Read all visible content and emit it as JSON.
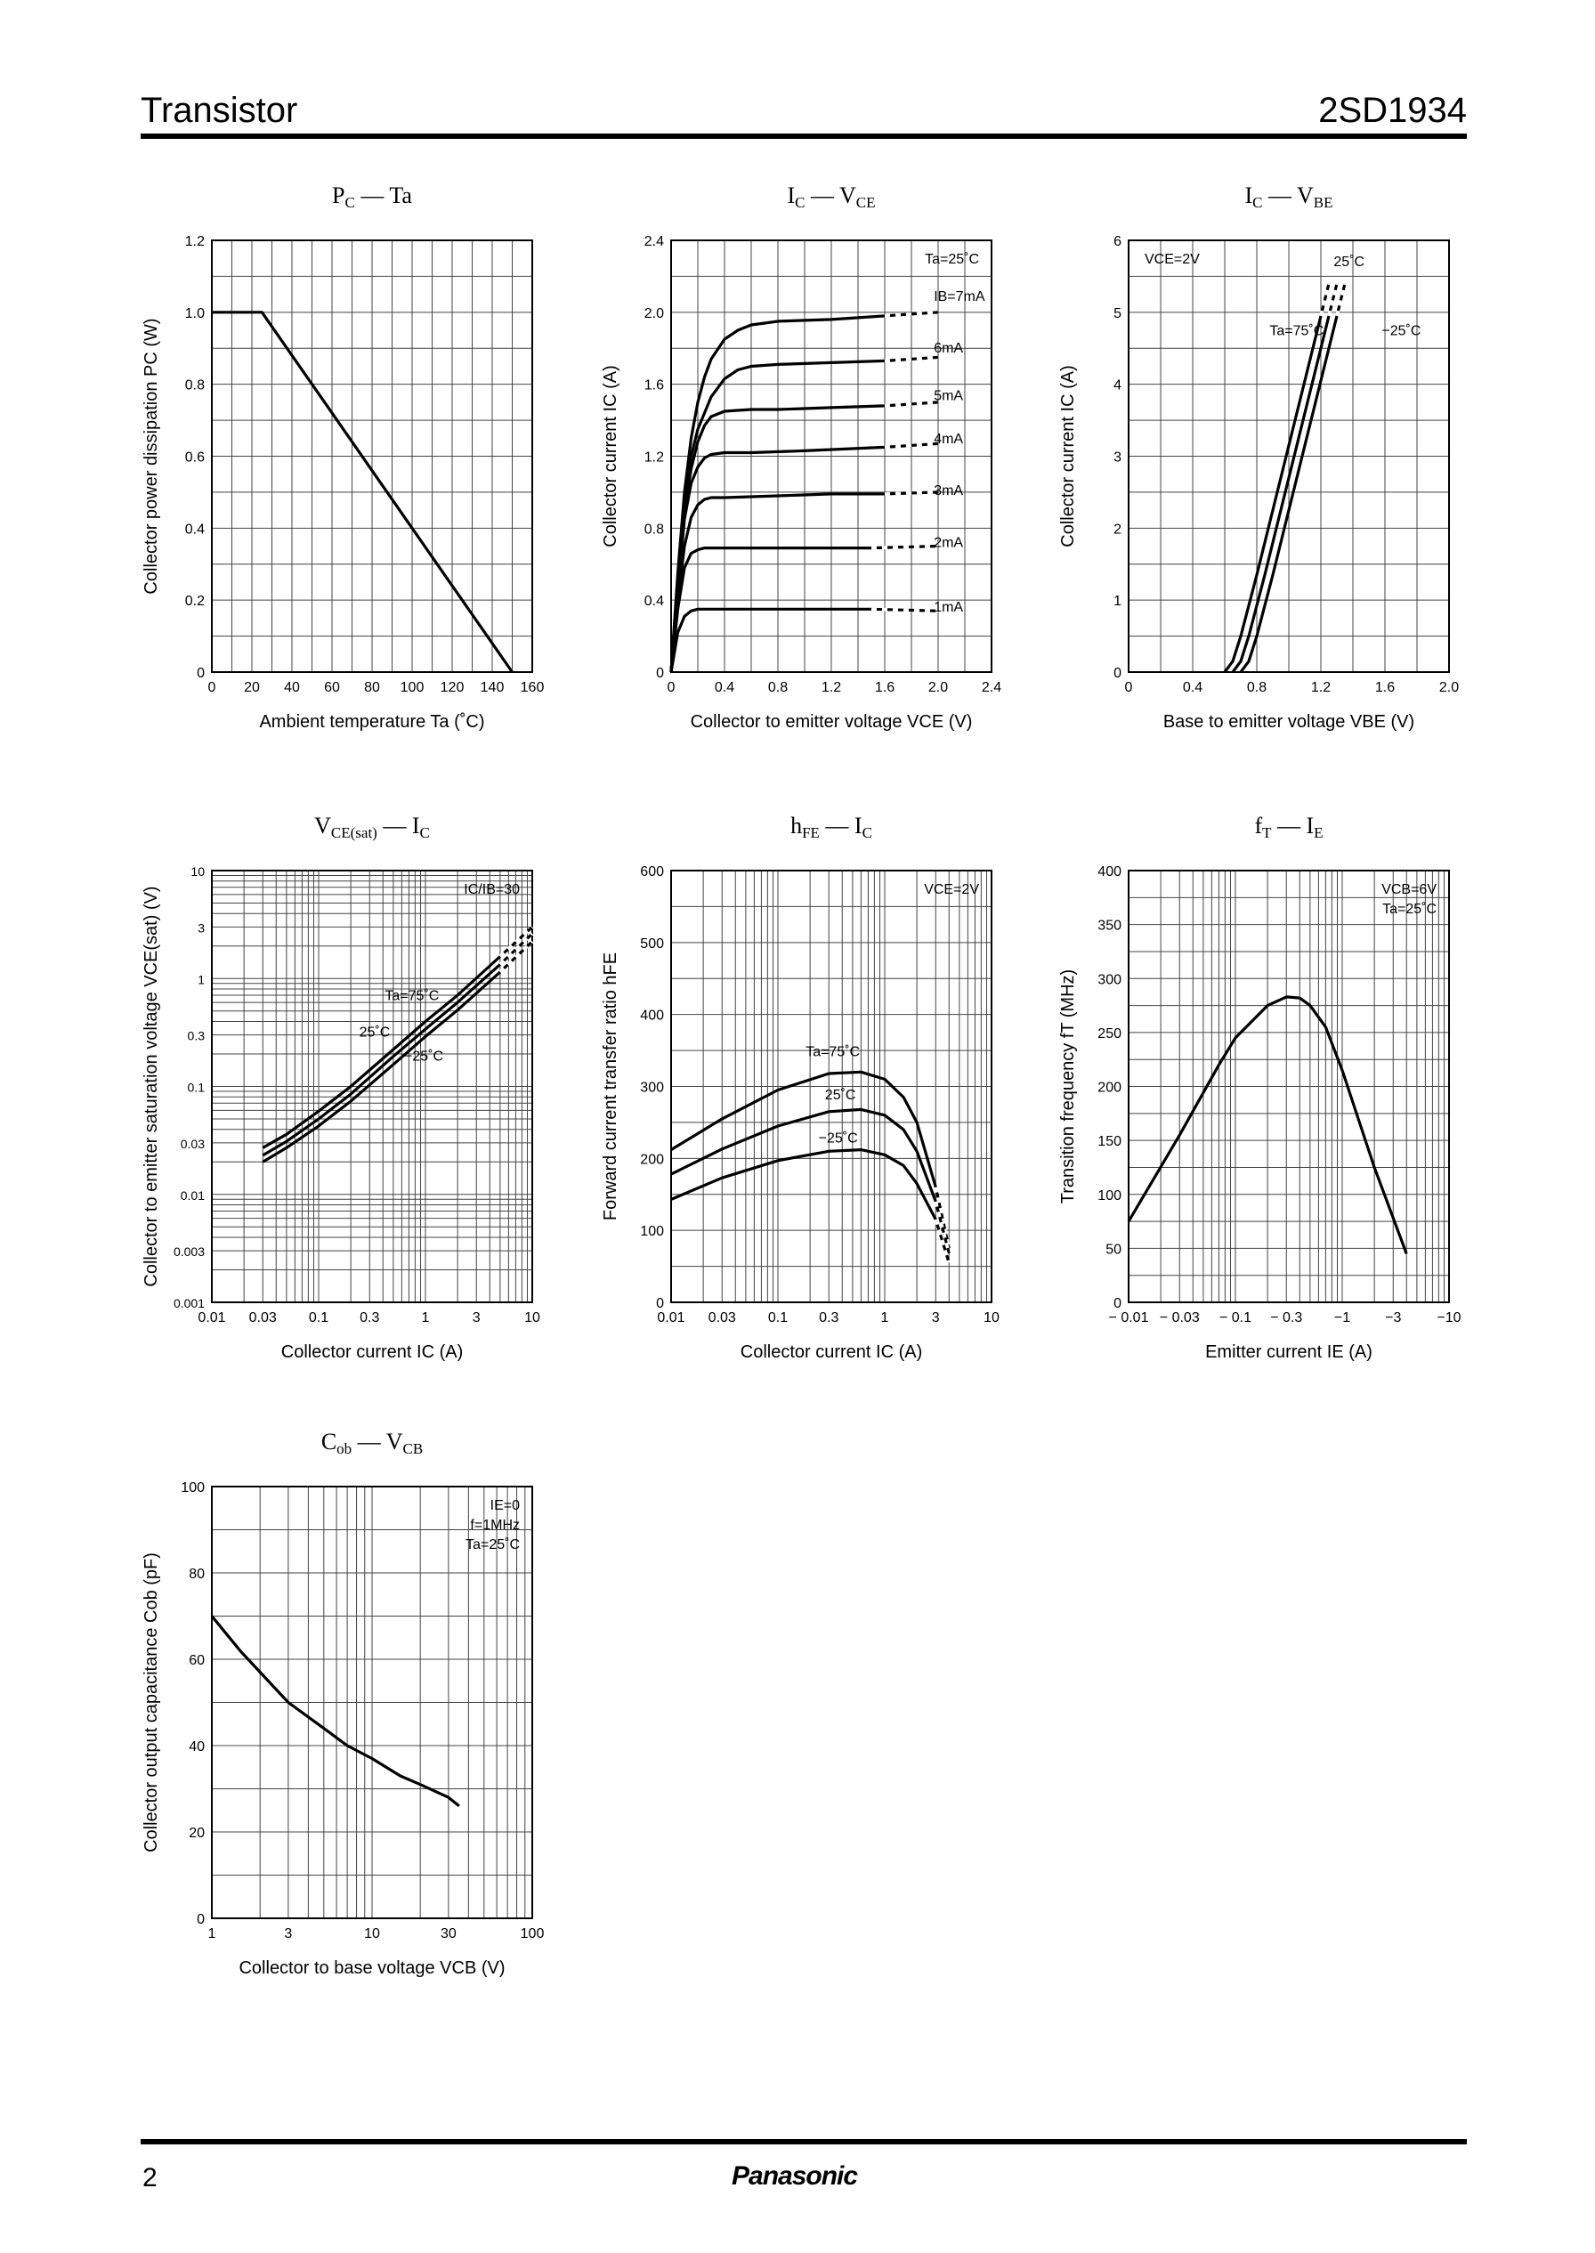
{
  "header": {
    "left": "Transistor",
    "right": "2SD1934"
  },
  "footer": {
    "page": "2",
    "brand": "Panasonic"
  },
  "chart_data": [
    {
      "id": "pc-ta",
      "type": "line",
      "title": "PC — Ta",
      "xlabel": "Ambient temperature Ta (˚C)",
      "ylabel": "Collector power dissipation PC (W)",
      "x_scale": "linear",
      "y_scale": "linear",
      "xlim": [
        0,
        160
      ],
      "ylim": [
        0,
        1.2
      ],
      "xticks": [
        0,
        20,
        40,
        60,
        80,
        100,
        120,
        140,
        160
      ],
      "yticks": [
        0,
        0.2,
        0.4,
        0.6,
        0.8,
        1.0,
        1.2
      ],
      "ytick_labels": [
        "0",
        "0.2",
        "0.4",
        "0.6",
        "0.8",
        "1.0",
        "1.2"
      ],
      "series": [
        {
          "x": [
            0,
            25,
            150
          ],
          "y": [
            1.0,
            1.0,
            0
          ]
        }
      ]
    },
    {
      "id": "ic-vce",
      "type": "line",
      "title": "IC — VCE",
      "xlabel": "Collector to emitter voltage VCE (V)",
      "ylabel": "Collector current IC (A)",
      "x_scale": "linear",
      "y_scale": "linear",
      "xlim": [
        0,
        2.4
      ],
      "ylim": [
        0,
        2.4
      ],
      "xticks": [
        0,
        0.4,
        0.8,
        1.2,
        1.6,
        2.0,
        2.4
      ],
      "xtick_labels": [
        "0",
        "0.4",
        "0.8",
        "1.2",
        "1.6",
        "2.0",
        "2.4"
      ],
      "yticks": [
        0,
        0.4,
        0.8,
        1.2,
        1.6,
        2.0,
        2.4
      ],
      "ytick_labels": [
        "0",
        "0.4",
        "0.8",
        "1.2",
        "1.6",
        "2.0",
        "2.4"
      ],
      "annotations": [
        "Ta=25˚C"
      ],
      "series": [
        {
          "name": "IB=7mA",
          "x": [
            0,
            0.05,
            0.1,
            0.15,
            0.2,
            0.25,
            0.3,
            0.4,
            0.5,
            0.6,
            0.7,
            0.8,
            1.2,
            1.6,
            2.0
          ],
          "y": [
            0,
            0.55,
            1.0,
            1.3,
            1.5,
            1.64,
            1.74,
            1.85,
            1.9,
            1.93,
            1.94,
            1.95,
            1.96,
            1.98,
            2.0
          ]
        },
        {
          "name": "6mA",
          "x": [
            0,
            0.05,
            0.1,
            0.15,
            0.2,
            0.3,
            0.4,
            0.5,
            0.6,
            0.8,
            1.2,
            1.6,
            2.0
          ],
          "y": [
            0,
            0.5,
            0.95,
            1.2,
            1.35,
            1.53,
            1.63,
            1.68,
            1.7,
            1.71,
            1.72,
            1.73,
            1.75
          ]
        },
        {
          "name": "5mA",
          "x": [
            0,
            0.05,
            0.1,
            0.15,
            0.2,
            0.25,
            0.3,
            0.4,
            0.6,
            0.8,
            1.2,
            1.6,
            2.0
          ],
          "y": [
            0,
            0.48,
            0.9,
            1.13,
            1.28,
            1.37,
            1.42,
            1.45,
            1.46,
            1.46,
            1.47,
            1.48,
            1.5
          ]
        },
        {
          "name": "4mA",
          "x": [
            0,
            0.05,
            0.1,
            0.15,
            0.2,
            0.25,
            0.3,
            0.4,
            0.6,
            1.0,
            1.6,
            2.0
          ],
          "y": [
            0,
            0.45,
            0.85,
            1.05,
            1.14,
            1.19,
            1.21,
            1.22,
            1.22,
            1.23,
            1.25,
            1.27
          ]
        },
        {
          "name": "3mA",
          "x": [
            0,
            0.05,
            0.1,
            0.15,
            0.2,
            0.25,
            0.3,
            0.4,
            0.8,
            1.2,
            1.6,
            2.0
          ],
          "y": [
            0,
            0.4,
            0.7,
            0.86,
            0.93,
            0.96,
            0.97,
            0.97,
            0.98,
            0.99,
            0.99,
            1.0
          ]
        },
        {
          "name": "2mA",
          "x": [
            0,
            0.05,
            0.1,
            0.15,
            0.2,
            0.25,
            0.3,
            0.5,
            1.0,
            1.5,
            2.0
          ],
          "y": [
            0,
            0.35,
            0.58,
            0.66,
            0.68,
            0.69,
            0.69,
            0.69,
            0.69,
            0.69,
            0.7
          ]
        },
        {
          "name": "1mA",
          "x": [
            0,
            0.05,
            0.1,
            0.15,
            0.2,
            0.3,
            0.5,
            1.0,
            1.5,
            2.0
          ],
          "y": [
            0,
            0.22,
            0.31,
            0.34,
            0.35,
            0.35,
            0.35,
            0.35,
            0.35,
            0.34
          ]
        }
      ]
    },
    {
      "id": "ic-vbe",
      "type": "line",
      "title": "IC — VBE",
      "xlabel": "Base to emitter voltage VBE (V)",
      "ylabel": "Collector current IC (A)",
      "x_scale": "linear",
      "y_scale": "linear",
      "xlim": [
        0,
        2.0
      ],
      "ylim": [
        0,
        6
      ],
      "xticks": [
        0,
        0.4,
        0.8,
        1.2,
        1.6,
        2.0
      ],
      "xtick_labels": [
        "0",
        "0.4",
        "0.8",
        "1.2",
        "1.6",
        "2.0"
      ],
      "yticks": [
        0,
        1,
        2,
        3,
        4,
        5,
        6
      ],
      "annotations": [
        "VCE=2V"
      ],
      "series": [
        {
          "name": "Ta=75˚C",
          "x": [
            0.6,
            0.65,
            0.7,
            0.8,
            0.9,
            1.0,
            1.1,
            1.2,
            1.25
          ],
          "y": [
            0,
            0.15,
            0.5,
            1.35,
            2.25,
            3.15,
            4.05,
            4.95,
            5.4
          ]
        },
        {
          "name": "25˚C",
          "x": [
            0.65,
            0.7,
            0.75,
            0.85,
            0.95,
            1.05,
            1.15,
            1.25,
            1.3
          ],
          "y": [
            0,
            0.15,
            0.5,
            1.35,
            2.25,
            3.15,
            4.05,
            4.95,
            5.4
          ]
        },
        {
          "name": "−25˚C",
          "x": [
            0.7,
            0.75,
            0.8,
            0.9,
            1.0,
            1.1,
            1.2,
            1.3,
            1.35
          ],
          "y": [
            0,
            0.15,
            0.5,
            1.35,
            2.25,
            3.15,
            4.05,
            4.95,
            5.4
          ]
        }
      ]
    },
    {
      "id": "vcesat-ic",
      "type": "line",
      "title": "VCE(sat) — IC",
      "xlabel": "Collector current IC (A)",
      "ylabel": "Collector to emitter saturation voltage VCE(sat) (V)",
      "x_scale": "log",
      "y_scale": "log",
      "xlim": [
        0.01,
        10
      ],
      "ylim": [
        0.001,
        10
      ],
      "xticks": [
        0.01,
        0.03,
        0.1,
        0.3,
        1,
        3,
        10
      ],
      "xtick_labels": [
        "0.01",
        "0.03",
        "0.1",
        "0.3",
        "1",
        "3",
        "10"
      ],
      "yticks": [
        0.001,
        0.003,
        0.01,
        0.03,
        0.1,
        0.3,
        1,
        3,
        10
      ],
      "ytick_labels": [
        "0.001",
        "0.003",
        "0.01",
        "0.03",
        "0.1",
        "0.3",
        "1",
        "3",
        "10"
      ],
      "annotations": [
        "IC/IB=30"
      ],
      "series": [
        {
          "name": "Ta=75˚C",
          "x": [
            0.03,
            0.05,
            0.1,
            0.2,
            0.5,
            1,
            2,
            5,
            10
          ],
          "y": [
            0.027,
            0.036,
            0.059,
            0.1,
            0.22,
            0.4,
            0.7,
            1.6,
            3.0
          ]
        },
        {
          "name": "25˚C",
          "x": [
            0.03,
            0.05,
            0.1,
            0.2,
            0.5,
            1,
            2,
            5,
            10
          ],
          "y": [
            0.023,
            0.031,
            0.05,
            0.085,
            0.19,
            0.34,
            0.6,
            1.35,
            2.6
          ]
        },
        {
          "name": "−25˚C",
          "x": [
            0.03,
            0.05,
            0.1,
            0.2,
            0.5,
            1,
            2,
            5,
            10
          ],
          "y": [
            0.02,
            0.027,
            0.043,
            0.073,
            0.16,
            0.29,
            0.51,
            1.15,
            2.2
          ]
        }
      ]
    },
    {
      "id": "hfe-ic",
      "type": "line",
      "title": "hFE — IC",
      "xlabel": "Collector current IC (A)",
      "ylabel": "Forward current transfer ratio hFE",
      "x_scale": "log",
      "y_scale": "linear",
      "xlim": [
        0.01,
        10
      ],
      "ylim": [
        0,
        600
      ],
      "xticks": [
        0.01,
        0.03,
        0.1,
        0.3,
        1,
        3,
        10
      ],
      "xtick_labels": [
        "0.01",
        "0.03",
        "0.1",
        "0.3",
        "1",
        "3",
        "10"
      ],
      "yticks": [
        0,
        100,
        200,
        300,
        400,
        500,
        600
      ],
      "annotations": [
        "VCE=2V"
      ],
      "series": [
        {
          "name": "Ta=75˚C",
          "x": [
            0.01,
            0.03,
            0.1,
            0.3,
            0.6,
            1,
            1.5,
            2,
            3,
            4
          ],
          "y": [
            212,
            255,
            295,
            318,
            320,
            310,
            285,
            250,
            160,
            75
          ]
        },
        {
          "name": "25˚C",
          "x": [
            0.01,
            0.03,
            0.1,
            0.3,
            0.6,
            1,
            1.5,
            2,
            3,
            4
          ],
          "y": [
            178,
            213,
            245,
            265,
            268,
            260,
            240,
            210,
            140,
            68
          ]
        },
        {
          "name": "−25˚C",
          "x": [
            0.01,
            0.03,
            0.1,
            0.3,
            0.6,
            1,
            1.5,
            2,
            3,
            4
          ],
          "y": [
            143,
            173,
            197,
            210,
            212,
            205,
            190,
            165,
            115,
            55
          ]
        }
      ]
    },
    {
      "id": "ft-ie",
      "type": "line",
      "title": "fT — IE",
      "xlabel": "Emitter current IE (A)",
      "ylabel": "Transition frequency fT (MHz)",
      "x_scale": "log",
      "y_scale": "linear",
      "xlim": [
        -0.01,
        -10
      ],
      "ylim": [
        0,
        400
      ],
      "xticks": [
        -0.01,
        -0.03,
        -0.1,
        -0.3,
        -1,
        -3,
        -10
      ],
      "xtick_labels": [
        "− 0.01",
        "− 0.03",
        "− 0.1",
        "− 0.3",
        "−1",
        "−3",
        "−10"
      ],
      "yticks": [
        0,
        50,
        100,
        150,
        200,
        250,
        300,
        350,
        400
      ],
      "annotations": [
        "VCB=6V",
        "Ta=25˚C"
      ],
      "series": [
        {
          "x": [
            -0.01,
            -0.03,
            -0.07,
            -0.1,
            -0.2,
            -0.3,
            -0.4,
            -0.5,
            -0.7,
            -1,
            -2,
            -4
          ],
          "y": [
            75,
            155,
            220,
            245,
            275,
            283,
            282,
            275,
            255,
            215,
            125,
            45
          ]
        }
      ]
    },
    {
      "id": "cob-vcb",
      "type": "line",
      "title": "Cob — VCB",
      "xlabel": "Collector to base voltage VCB (V)",
      "ylabel": "Collector output capacitance Cob (pF)",
      "x_scale": "log",
      "y_scale": "linear",
      "xlim": [
        1,
        100
      ],
      "ylim": [
        0,
        100
      ],
      "xticks": [
        1,
        3,
        10,
        30,
        100
      ],
      "yticks": [
        0,
        20,
        40,
        60,
        80,
        100
      ],
      "annotations": [
        "IE=0",
        "f=1MHz",
        "Ta=25˚C"
      ],
      "series": [
        {
          "x": [
            1,
            1.5,
            2,
            3,
            5,
            7,
            10,
            15,
            20,
            30,
            35
          ],
          "y": [
            70,
            62,
            57,
            50,
            44,
            40,
            37,
            33,
            31,
            28,
            26
          ]
        }
      ]
    }
  ]
}
